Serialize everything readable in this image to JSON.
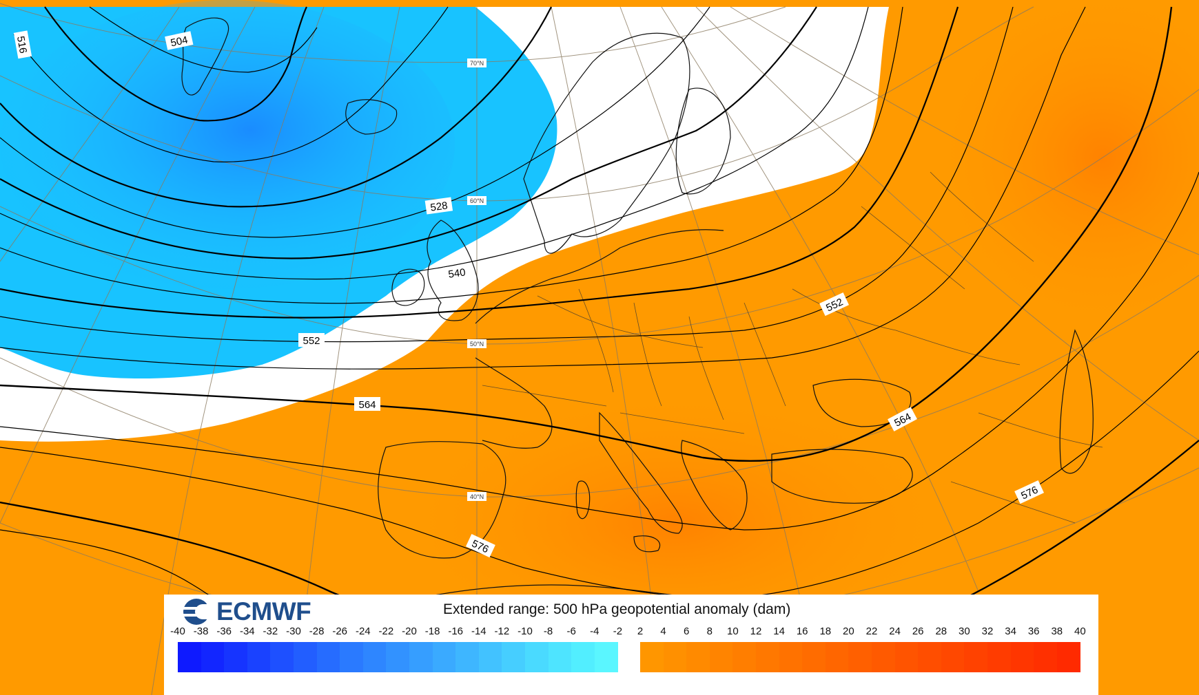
{
  "legend": {
    "title": "Extended range: 500 hPa geopotential anomaly (dam)",
    "logo_text": "ECMWF",
    "logo_icon": "ecmwf-logo-icon",
    "neg_ticks": [
      "-40",
      "-38",
      "-36",
      "-34",
      "-32",
      "-30",
      "-28",
      "-26",
      "-24",
      "-22",
      "-20",
      "-18",
      "-16",
      "-14",
      "-12",
      "-10",
      "-8",
      "-6",
      "-4",
      "-2"
    ],
    "pos_ticks": [
      "2",
      "4",
      "6",
      "8",
      "10",
      "12",
      "14",
      "16",
      "18",
      "20",
      "22",
      "24",
      "26",
      "28",
      "30",
      "32",
      "34",
      "36",
      "38",
      "40"
    ],
    "neg_colors": [
      "#0a0aff",
      "#0e1aff",
      "#1226ff",
      "#1634ff",
      "#1a42ff",
      "#1e50ff",
      "#225eff",
      "#266cff",
      "#2a7aff",
      "#2e86ff",
      "#3292ff",
      "#369eff",
      "#3aaaff",
      "#3eb6ff",
      "#42c2ff",
      "#46ceff",
      "#4adaff",
      "#4ee4ff",
      "#52eeff",
      "#5af6ff"
    ],
    "pos_colors": [
      "#ff9a00",
      "#ff9600",
      "#ff9000",
      "#ff8a00",
      "#ff8400",
      "#ff7e00",
      "#ff7800",
      "#ff7200",
      "#ff6c00",
      "#ff6600",
      "#ff6000",
      "#ff5a00",
      "#ff5400",
      "#ff4e00",
      "#ff4800",
      "#ff4200",
      "#ff3c00",
      "#ff3600",
      "#ff3000",
      "#ff2a00"
    ]
  },
  "map": {
    "colors": {
      "negative": "#1fb7ff",
      "negative_dark": "#1094ff",
      "neutral": "#ffffff",
      "positive": "#ff9a00",
      "positive_dark": "#ff8400"
    },
    "contour_labels": [
      "504",
      "516",
      "528",
      "540",
      "552",
      "564",
      "564",
      "576",
      "576",
      "552"
    ],
    "lat_labels": [
      "70°N",
      "60°N",
      "50°N",
      "40°N"
    ]
  }
}
